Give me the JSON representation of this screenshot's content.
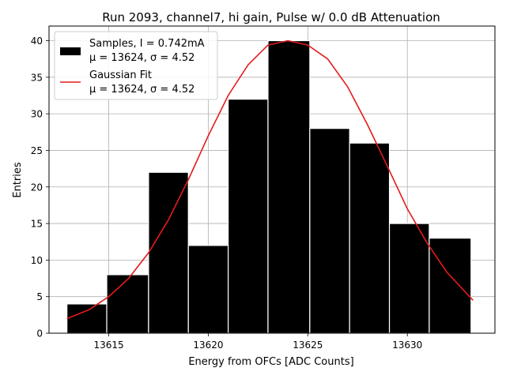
{
  "chart_data": {
    "type": "bar",
    "title": "Run 2093, channel7, hi gain, Pulse w/ 0.0 dB Attenuation",
    "xlabel": "Energy from OFCs [ADC Counts]",
    "ylabel": "Entries",
    "xlim": [
      13612.0,
      13634.4
    ],
    "ylim": [
      0,
      42
    ],
    "xticks": [
      13615,
      13620,
      13625,
      13630
    ],
    "yticks": [
      0,
      5,
      10,
      15,
      20,
      25,
      30,
      35,
      40
    ],
    "grid": true,
    "legend_position": "top-left",
    "bins": [
      {
        "x0": 13612.9,
        "x1": 13614.9,
        "value": 4
      },
      {
        "x0": 13614.9,
        "x1": 13617.0,
        "value": 8
      },
      {
        "x0": 13617.0,
        "x1": 13619.0,
        "value": 22
      },
      {
        "x0": 13619.0,
        "x1": 13621.0,
        "value": 12
      },
      {
        "x0": 13621.0,
        "x1": 13623.0,
        "value": 32
      },
      {
        "x0": 13623.0,
        "x1": 13625.1,
        "value": 40
      },
      {
        "x0": 13625.1,
        "x1": 13627.1,
        "value": 28
      },
      {
        "x0": 13627.1,
        "x1": 13629.1,
        "value": 26
      },
      {
        "x0": 13629.1,
        "x1": 13631.1,
        "value": 15
      },
      {
        "x0": 13631.1,
        "x1": 13633.2,
        "value": 13
      }
    ],
    "series": [
      {
        "name": "Samples, I = 0.742mA",
        "stats": "μ = 13624, σ = 4.52",
        "kind": "histogram",
        "color": "#000000"
      },
      {
        "name": "Gaussian Fit",
        "stats": "μ = 13624, σ = 4.52",
        "kind": "line",
        "color": "#e41a1c",
        "x": [
          13612.9,
          13614.0,
          13615.0,
          13616.0,
          13617.0,
          13618.0,
          13619.0,
          13620.0,
          13621.0,
          13622.0,
          13623.0,
          13624.0,
          13625.0,
          13626.0,
          13627.0,
          13628.0,
          13629.0,
          13630.0,
          13631.0,
          13632.0,
          13633.3
        ],
        "y": [
          2.0,
          3.2,
          5.0,
          7.5,
          11.0,
          15.5,
          21.0,
          27.0,
          32.5,
          36.7,
          39.4,
          40.0,
          39.4,
          37.5,
          33.7,
          28.5,
          22.8,
          17.0,
          12.3,
          8.3,
          4.5
        ]
      }
    ]
  }
}
